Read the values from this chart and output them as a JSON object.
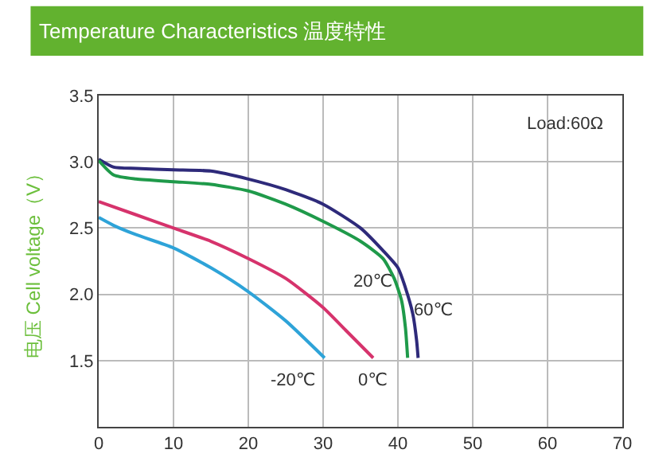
{
  "chart_data": {
    "type": "line",
    "title": "Temperature Characteristics 温度特性",
    "ylabel": "电压 Cell voltage（V）",
    "annotations": [
      "Load:60Ω"
    ],
    "xlim": [
      0,
      70
    ],
    "xticks": [
      0,
      10,
      20,
      30,
      40,
      50,
      60,
      70
    ],
    "ylim": [
      1.0,
      3.5
    ],
    "yticks": [
      1.5,
      {
        "value": 2,
        "label": "2.0"
      },
      2.5,
      {
        "value": 3,
        "label": "3.0"
      },
      3.5
    ],
    "grid": true,
    "legend": false,
    "marker": "none",
    "line_style": "solid",
    "series": [
      {
        "name": "60℃",
        "color": "#2e2a7a",
        "x": [
          0,
          2,
          5,
          10,
          15,
          20,
          25,
          30,
          35,
          38,
          40,
          41,
          42,
          42.5,
          42.7
        ],
        "values": [
          3.02,
          2.96,
          2.95,
          2.94,
          2.93,
          2.87,
          2.79,
          2.68,
          2.5,
          2.33,
          2.2,
          2.05,
          1.85,
          1.65,
          1.52
        ]
      },
      {
        "name": "20℃",
        "color": "#1f9a4a",
        "x": [
          0,
          2,
          5,
          10,
          15,
          20,
          25,
          30,
          35,
          38,
          39.5,
          40.5,
          41,
          41.3
        ],
        "values": [
          3.01,
          2.9,
          2.87,
          2.85,
          2.83,
          2.78,
          2.68,
          2.55,
          2.4,
          2.27,
          2.12,
          1.95,
          1.75,
          1.52
        ]
      },
      {
        "name": "0℃",
        "color": "#d6336c",
        "x": [
          0,
          5,
          10,
          15,
          20,
          25,
          30,
          33,
          36.7
        ],
        "values": [
          2.7,
          2.6,
          2.5,
          2.4,
          2.27,
          2.12,
          1.9,
          1.73,
          1.52
        ]
      },
      {
        "name": "-20℃",
        "color": "#2ea3d8",
        "x": [
          0,
          2,
          5,
          10,
          15,
          20,
          25,
          30.2
        ],
        "values": [
          2.58,
          2.52,
          2.45,
          2.35,
          2.2,
          2.02,
          1.8,
          1.52
        ]
      }
    ]
  }
}
